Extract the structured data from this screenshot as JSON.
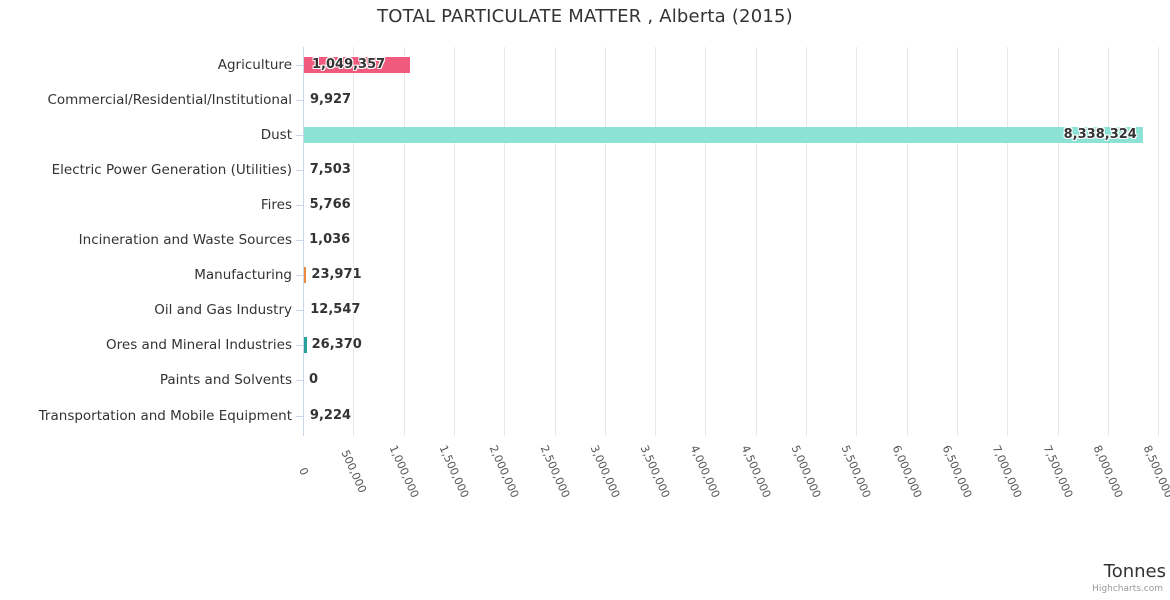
{
  "chart": {
    "title": "TOTAL PARTICULATE MATTER , Alberta (2015)",
    "x_axis_title": "Tonnes",
    "credits_label": "Highcharts.com"
  },
  "chart_data": {
    "type": "bar",
    "orientation": "horizontal",
    "title": "TOTAL PARTICULATE MATTER , Alberta (2015)",
    "categories": [
      "Agriculture",
      "Commercial/Residential/Institutional",
      "Dust",
      "Electric Power Generation (Utilities)",
      "Fires",
      "Incineration and Waste Sources",
      "Manufacturing",
      "Oil and Gas Industry",
      "Ores and Mineral Industries",
      "Paints and Solvents",
      "Transportation and Mobile Equipment"
    ],
    "values": [
      1049357,
      9927,
      8338324,
      7503,
      5766,
      1036,
      23971,
      12547,
      26370,
      0,
      9224
    ],
    "value_labels": [
      "1,049,357",
      "9,927",
      "8,338,324",
      "7,503",
      "5,766",
      "1,036",
      "23,971",
      "12,547",
      "26,370",
      "0",
      "9,224"
    ],
    "bar_colors": [
      "#f05a7d",
      null,
      "#8ce3d5",
      null,
      null,
      null,
      "#ee8a3e",
      null,
      "#27a09b",
      null,
      null
    ],
    "xlabel": "Tonnes",
    "xlim": [
      0,
      8500000
    ],
    "x_tick_interval": 500000,
    "x_tick_labels": [
      "0",
      "500,000",
      "1,000,000",
      "1,500,000",
      "2,000,000",
      "2,500,000",
      "3,000,000",
      "3,500,000",
      "4,000,000",
      "4,500,000",
      "5,000,000",
      "5,500,000",
      "6,000,000",
      "6,500,000",
      "7,000,000",
      "7,500,000",
      "8,000,000",
      "8,500,000"
    ],
    "grid": true,
    "legend": "none"
  },
  "colors": {
    "grid_line": "#e7e7e7",
    "axis_line": "#ccd6eb",
    "tick_mark": "#ccd6eb",
    "title_text": "#333333",
    "label_text": "#333333",
    "tick_label_text": "#555555",
    "credits_text": "#999999"
  }
}
